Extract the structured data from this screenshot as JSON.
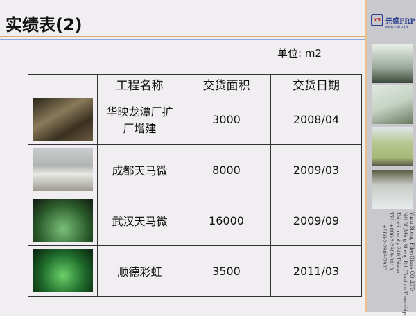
{
  "title": "实绩表(2)",
  "unit": "单位: m2",
  "logo": {
    "badge": "YS",
    "name": "元盛FRP",
    "url": "www.ysfrp.tw"
  },
  "company": [
    "Yuan Sheng FiberGlass CO.,LTD",
    "NO.68,Ming Sheng Rd.,Tiashan Township,",
    "Taipei county 240,Taiwan",
    "TEL:+886-2-2909-3113",
    "+886-2-2909-7923"
  ],
  "table": {
    "headers": [
      "",
      "工程名称",
      "交货面积",
      "交货日期"
    ],
    "rows": [
      {
        "name": "华映龙潭厂扩厂增建",
        "area": "3000",
        "date": "2008/04"
      },
      {
        "name": "成都天马微",
        "area": "8000",
        "date": "2009/03"
      },
      {
        "name": "武汉天马微",
        "area": "16000",
        "date": "2009/09"
      },
      {
        "name": "顺德彩虹",
        "area": "3500",
        "date": "2011/03"
      }
    ]
  },
  "colors": {
    "accent_orange": "#e0a86a",
    "accent_blue": "#8aa8dc",
    "panel": "#c9c9cd"
  }
}
